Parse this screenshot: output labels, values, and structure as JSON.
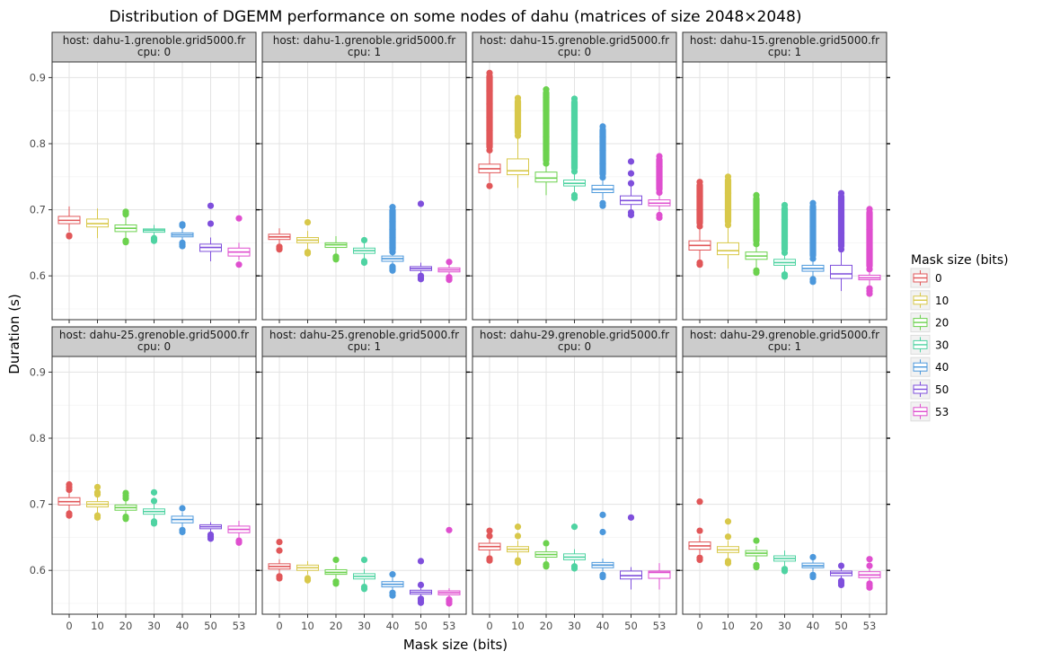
{
  "chart_data": {
    "type": "boxplot",
    "title": "Distribution of DGEMM performance on some nodes of dahu (matrices of size 2048×2048)",
    "xlabel": "Mask size (bits)",
    "ylabel": "Duration (s)",
    "categories": [
      "0",
      "10",
      "20",
      "30",
      "40",
      "50",
      "53"
    ],
    "ylim": [
      0.535,
      0.93
    ],
    "yticks": [
      0.6,
      0.7,
      0.8,
      0.9
    ],
    "ytick_labels": [
      "0.6",
      "0.7",
      "0.8",
      "0.9"
    ],
    "grid": true,
    "legend": {
      "title": "Mask size (bits)",
      "placement": "right",
      "entries": [
        "0",
        "10",
        "20",
        "30",
        "40",
        "50",
        "53"
      ]
    },
    "colors": [
      "#e15759",
      "#d8c84a",
      "#6cd24e",
      "#4fd3a2",
      "#4c98dc",
      "#7f4fdc",
      "#df4fcf"
    ],
    "panels": [
      {
        "host_label": "host: dahu-1.grenoble.grid5000.fr",
        "cpu_label": "cpu: 0",
        "boxes": [
          {
            "q1": 0.679,
            "median": 0.684,
            "q3": 0.69,
            "whisker_low": 0.667,
            "whisker_high": 0.705,
            "outliers": [
              0.66,
              0.661
            ]
          },
          {
            "q1": 0.674,
            "median": 0.679,
            "q3": 0.686,
            "whisker_low": 0.657,
            "whisker_high": 0.702,
            "outliers": []
          },
          {
            "q1": 0.667,
            "median": 0.672,
            "q3": 0.677,
            "whisker_low": 0.656,
            "whisker_high": 0.69,
            "outliers": [
              0.651,
              0.653,
              0.693,
              0.695,
              0.697
            ]
          },
          {
            "q1": 0.666,
            "median": 0.669,
            "q3": 0.671,
            "whisker_low": 0.66,
            "whisker_high": 0.677,
            "outliers": [
              0.653,
              0.655,
              0.657
            ]
          },
          {
            "q1": 0.659,
            "median": 0.662,
            "q3": 0.665,
            "whisker_low": 0.652,
            "whisker_high": 0.672,
            "outliers": [
              0.645,
              0.647,
              0.65,
              0.676,
              0.678
            ]
          },
          {
            "q1": 0.637,
            "median": 0.643,
            "q3": 0.648,
            "whisker_low": 0.622,
            "whisker_high": 0.658,
            "outliers": [
              0.679,
              0.706
            ]
          },
          {
            "q1": 0.63,
            "median": 0.636,
            "q3": 0.642,
            "whisker_low": 0.624,
            "whisker_high": 0.65,
            "outliers": [
              0.617,
              0.687
            ]
          }
        ]
      },
      {
        "host_label": "host: dahu-1.grenoble.grid5000.fr",
        "cpu_label": "cpu: 1",
        "boxes": [
          {
            "q1": 0.655,
            "median": 0.659,
            "q3": 0.663,
            "whisker_low": 0.646,
            "whisker_high": 0.672,
            "outliers": [
              0.64,
              0.642,
              0.644
            ]
          },
          {
            "q1": 0.65,
            "median": 0.654,
            "q3": 0.658,
            "whisker_low": 0.64,
            "whisker_high": 0.668,
            "outliers": [
              0.634,
              0.636,
              0.681
            ]
          },
          {
            "q1": 0.643,
            "median": 0.647,
            "q3": 0.65,
            "whisker_low": 0.633,
            "whisker_high": 0.66,
            "outliers": [
              0.625,
              0.627,
              0.629
            ]
          },
          {
            "q1": 0.634,
            "median": 0.638,
            "q3": 0.642,
            "whisker_low": 0.626,
            "whisker_high": 0.652,
            "outliers": [
              0.62,
              0.622,
              0.654
            ]
          },
          {
            "q1": 0.622,
            "median": 0.626,
            "q3": 0.63,
            "whisker_low": 0.615,
            "whisker_high": 0.638,
            "outliers": [
              0.608,
              0.61,
              0.612,
              0.614,
              0.636,
              0.64,
              0.643,
              0.658,
              0.67,
              0.682,
              0.704
            ]
          },
          {
            "q1": 0.608,
            "median": 0.611,
            "q3": 0.614,
            "whisker_low": 0.603,
            "whisker_high": 0.62,
            "outliers": [
              0.595,
              0.597,
              0.6,
              0.709
            ]
          },
          {
            "q1": 0.606,
            "median": 0.609,
            "q3": 0.612,
            "whisker_low": 0.601,
            "whisker_high": 0.618,
            "outliers": [
              0.594,
              0.596,
              0.598,
              0.621
            ]
          }
        ]
      },
      {
        "host_label": "host: dahu-15.grenoble.grid5000.fr",
        "cpu_label": "cpu: 0",
        "boxes": [
          {
            "q1": 0.756,
            "median": 0.762,
            "q3": 0.769,
            "whisker_low": 0.742,
            "whisker_high": 0.787,
            "outliers": [
              0.736,
              0.79,
              0.8,
              0.82,
              0.84,
              0.86,
              0.88,
              0.9,
              0.907
            ]
          },
          {
            "q1": 0.753,
            "median": 0.759,
            "q3": 0.777,
            "whisker_low": 0.733,
            "whisker_high": 0.808,
            "outliers": [
              0.812,
              0.83,
              0.85,
              0.869
            ]
          },
          {
            "q1": 0.742,
            "median": 0.748,
            "q3": 0.757,
            "whisker_low": 0.722,
            "whisker_high": 0.768,
            "outliers": [
              0.77,
              0.79,
              0.81,
              0.83,
              0.85,
              0.87,
              0.882
            ]
          },
          {
            "q1": 0.736,
            "median": 0.74,
            "q3": 0.745,
            "whisker_low": 0.727,
            "whisker_high": 0.755,
            "outliers": [
              0.718,
              0.722,
              0.758,
              0.78,
              0.8,
              0.82,
              0.84,
              0.868
            ]
          },
          {
            "q1": 0.726,
            "median": 0.731,
            "q3": 0.737,
            "whisker_low": 0.716,
            "whisker_high": 0.746,
            "outliers": [
              0.706,
              0.71,
              0.749,
              0.77,
              0.79,
              0.81,
              0.826
            ]
          },
          {
            "q1": 0.708,
            "median": 0.714,
            "q3": 0.721,
            "whisker_low": 0.7,
            "whisker_high": 0.737,
            "outliers": [
              0.692,
              0.696,
              0.74,
              0.755,
              0.773
            ]
          },
          {
            "q1": 0.706,
            "median": 0.71,
            "q3": 0.715,
            "whisker_low": 0.697,
            "whisker_high": 0.723,
            "outliers": [
              0.688,
              0.692,
              0.726,
              0.745,
              0.765,
              0.781
            ]
          }
        ]
      },
      {
        "host_label": "host: dahu-15.grenoble.grid5000.fr",
        "cpu_label": "cpu: 1",
        "boxes": [
          {
            "q1": 0.639,
            "median": 0.646,
            "q3": 0.653,
            "whisker_low": 0.622,
            "whisker_high": 0.672,
            "outliers": [
              0.617,
              0.62,
              0.675,
              0.7,
              0.72,
              0.742
            ]
          },
          {
            "q1": 0.632,
            "median": 0.638,
            "q3": 0.65,
            "whisker_low": 0.611,
            "whisker_high": 0.674,
            "outliers": [
              0.677,
              0.7,
              0.725,
              0.75
            ]
          },
          {
            "q1": 0.625,
            "median": 0.63,
            "q3": 0.636,
            "whisker_low": 0.61,
            "whisker_high": 0.645,
            "outliers": [
              0.605,
              0.608,
              0.648,
              0.67,
              0.7,
              0.722
            ]
          },
          {
            "q1": 0.616,
            "median": 0.62,
            "q3": 0.625,
            "whisker_low": 0.605,
            "whisker_high": 0.632,
            "outliers": [
              0.599,
              0.602,
              0.635,
              0.66,
              0.685,
              0.707
            ]
          },
          {
            "q1": 0.607,
            "median": 0.611,
            "q3": 0.616,
            "whisker_low": 0.598,
            "whisker_high": 0.623,
            "outliers": [
              0.591,
              0.595,
              0.626,
              0.65,
              0.675,
              0.7,
              0.71
            ]
          },
          {
            "q1": 0.596,
            "median": 0.603,
            "q3": 0.616,
            "whisker_low": 0.577,
            "whisker_high": 0.636,
            "outliers": [
              0.64,
              0.665,
              0.69,
              0.715,
              0.725
            ]
          },
          {
            "q1": 0.594,
            "median": 0.597,
            "q3": 0.601,
            "whisker_low": 0.586,
            "whisker_high": 0.607,
            "outliers": [
              0.573,
              0.577,
              0.581,
              0.61,
              0.64,
              0.67,
              0.701
            ]
          }
        ]
      },
      {
        "host_label": "host: dahu-25.grenoble.grid5000.fr",
        "cpu_label": "cpu: 0",
        "boxes": [
          {
            "q1": 0.699,
            "median": 0.704,
            "q3": 0.71,
            "whisker_low": 0.69,
            "whisker_high": 0.719,
            "outliers": [
              0.683,
              0.686,
              0.722,
              0.726,
              0.73
            ]
          },
          {
            "q1": 0.696,
            "median": 0.7,
            "q3": 0.704,
            "whisker_low": 0.687,
            "whisker_high": 0.712,
            "outliers": [
              0.68,
              0.683,
              0.715,
              0.718,
              0.726
            ]
          },
          {
            "q1": 0.691,
            "median": 0.695,
            "q3": 0.699,
            "whisker_low": 0.684,
            "whisker_high": 0.706,
            "outliers": [
              0.678,
              0.681,
              0.709,
              0.713,
              0.717
            ]
          },
          {
            "q1": 0.685,
            "median": 0.689,
            "q3": 0.693,
            "whisker_low": 0.678,
            "whisker_high": 0.7,
            "outliers": [
              0.671,
              0.674,
              0.705,
              0.718
            ]
          },
          {
            "q1": 0.672,
            "median": 0.677,
            "q3": 0.682,
            "whisker_low": 0.664,
            "whisker_high": 0.688,
            "outliers": [
              0.658,
              0.661,
              0.694
            ]
          },
          {
            "q1": 0.663,
            "median": 0.666,
            "q3": 0.669,
            "whisker_low": 0.657,
            "whisker_high": 0.673,
            "outliers": [
              0.648,
              0.651,
              0.654
            ]
          },
          {
            "q1": 0.657,
            "median": 0.662,
            "q3": 0.667,
            "whisker_low": 0.649,
            "whisker_high": 0.675,
            "outliers": [
              0.642,
              0.645
            ]
          }
        ]
      },
      {
        "host_label": "host: dahu-25.grenoble.grid5000.fr",
        "cpu_label": "cpu: 1",
        "boxes": [
          {
            "q1": 0.602,
            "median": 0.606,
            "q3": 0.61,
            "whisker_low": 0.595,
            "whisker_high": 0.617,
            "outliers": [
              0.588,
              0.591,
              0.63,
              0.643
            ]
          },
          {
            "q1": 0.6,
            "median": 0.604,
            "q3": 0.608,
            "whisker_low": 0.594,
            "whisker_high": 0.614,
            "outliers": [
              0.585,
              0.588
            ]
          },
          {
            "q1": 0.594,
            "median": 0.597,
            "q3": 0.601,
            "whisker_low": 0.588,
            "whisker_high": 0.608,
            "outliers": [
              0.58,
              0.583,
              0.616
            ]
          },
          {
            "q1": 0.587,
            "median": 0.591,
            "q3": 0.595,
            "whisker_low": 0.58,
            "whisker_high": 0.602,
            "outliers": [
              0.572,
              0.575,
              0.616
            ]
          },
          {
            "q1": 0.575,
            "median": 0.579,
            "q3": 0.583,
            "whisker_low": 0.569,
            "whisker_high": 0.589,
            "outliers": [
              0.562,
              0.566,
              0.594
            ]
          },
          {
            "q1": 0.564,
            "median": 0.567,
            "q3": 0.57,
            "whisker_low": 0.559,
            "whisker_high": 0.574,
            "outliers": [
              0.551,
              0.554,
              0.557,
              0.578,
              0.614
            ]
          },
          {
            "q1": 0.563,
            "median": 0.566,
            "q3": 0.569,
            "whisker_low": 0.558,
            "whisker_high": 0.573,
            "outliers": [
              0.55,
              0.553,
              0.556,
              0.661
            ]
          }
        ]
      },
      {
        "host_label": "host: dahu-29.grenoble.grid5000.fr",
        "cpu_label": "cpu: 0",
        "boxes": [
          {
            "q1": 0.631,
            "median": 0.636,
            "q3": 0.641,
            "whisker_low": 0.622,
            "whisker_high": 0.65,
            "outliers": [
              0.615,
              0.618,
              0.652,
              0.66
            ]
          },
          {
            "q1": 0.628,
            "median": 0.632,
            "q3": 0.636,
            "whisker_low": 0.62,
            "whisker_high": 0.645,
            "outliers": [
              0.612,
              0.615,
              0.652,
              0.666
            ]
          },
          {
            "q1": 0.62,
            "median": 0.624,
            "q3": 0.628,
            "whisker_low": 0.613,
            "whisker_high": 0.636,
            "outliers": [
              0.606,
              0.609,
              0.641
            ]
          },
          {
            "q1": 0.616,
            "median": 0.62,
            "q3": 0.625,
            "whisker_low": 0.609,
            "whisker_high": 0.632,
            "outliers": [
              0.603,
              0.606,
              0.666
            ]
          },
          {
            "q1": 0.604,
            "median": 0.608,
            "q3": 0.612,
            "whisker_low": 0.598,
            "whisker_high": 0.618,
            "outliers": [
              0.59,
              0.593,
              0.658,
              0.684
            ]
          },
          {
            "q1": 0.587,
            "median": 0.592,
            "q3": 0.599,
            "whisker_low": 0.571,
            "whisker_high": 0.605,
            "outliers": [
              0.68
            ]
          },
          {
            "q1": 0.588,
            "median": 0.597,
            "q3": 0.599,
            "whisker_low": 0.571,
            "whisker_high": 0.611,
            "outliers": []
          }
        ]
      },
      {
        "host_label": "host: dahu-29.grenoble.grid5000.fr",
        "cpu_label": "cpu: 1",
        "boxes": [
          {
            "q1": 0.632,
            "median": 0.637,
            "q3": 0.643,
            "whisker_low": 0.624,
            "whisker_high": 0.653,
            "outliers": [
              0.616,
              0.619,
              0.66,
              0.704
            ]
          },
          {
            "q1": 0.627,
            "median": 0.631,
            "q3": 0.636,
            "whisker_low": 0.619,
            "whisker_high": 0.645,
            "outliers": [
              0.611,
              0.614,
              0.651,
              0.674
            ]
          },
          {
            "q1": 0.622,
            "median": 0.626,
            "q3": 0.63,
            "whisker_low": 0.614,
            "whisker_high": 0.637,
            "outliers": [
              0.605,
              0.608,
              0.645
            ]
          },
          {
            "q1": 0.614,
            "median": 0.618,
            "q3": 0.622,
            "whisker_low": 0.607,
            "whisker_high": 0.63,
            "outliers": [
              0.599,
              0.602
            ]
          },
          {
            "q1": 0.604,
            "median": 0.607,
            "q3": 0.611,
            "whisker_low": 0.597,
            "whisker_high": 0.617,
            "outliers": [
              0.59,
              0.593,
              0.62
            ]
          },
          {
            "q1": 0.592,
            "median": 0.596,
            "q3": 0.599,
            "whisker_low": 0.586,
            "whisker_high": 0.604,
            "outliers": [
              0.578,
              0.581,
              0.584,
              0.607
            ]
          },
          {
            "q1": 0.589,
            "median": 0.593,
            "q3": 0.598,
            "whisker_low": 0.582,
            "whisker_high": 0.605,
            "outliers": [
              0.574,
              0.577,
              0.58,
              0.607,
              0.617
            ]
          }
        ]
      }
    ]
  }
}
